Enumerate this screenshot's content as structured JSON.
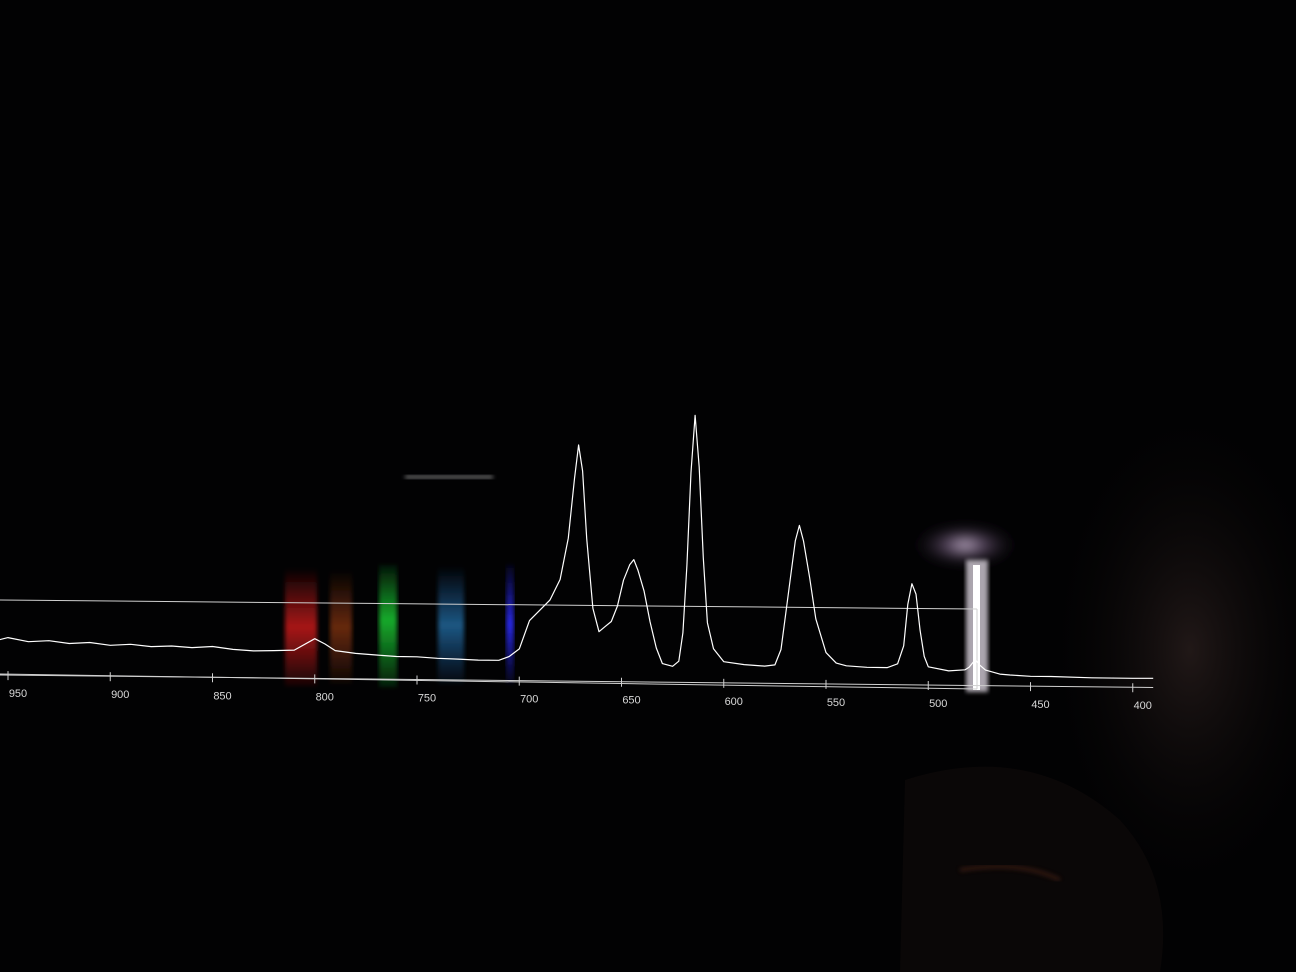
{
  "chart_data": {
    "type": "line",
    "title": "",
    "xlabel": "",
    "ylabel": "",
    "x_ticks": [
      950,
      900,
      850,
      800,
      750,
      700,
      650,
      600,
      550,
      500,
      450,
      400
    ],
    "xlim": [
      955,
      390
    ],
    "ylim": [
      0,
      1
    ],
    "x_axis_reversed": true,
    "grid": false,
    "legend": "none",
    "series": [
      {
        "points": [
          [
            955,
            0.1
          ],
          [
            950,
            0.11
          ],
          [
            940,
            0.095
          ],
          [
            930,
            0.1
          ],
          [
            920,
            0.09
          ],
          [
            910,
            0.095
          ],
          [
            900,
            0.085
          ],
          [
            890,
            0.09
          ],
          [
            880,
            0.082
          ],
          [
            870,
            0.085
          ],
          [
            860,
            0.08
          ],
          [
            850,
            0.085
          ],
          [
            840,
            0.075
          ],
          [
            830,
            0.07
          ],
          [
            820,
            0.072
          ],
          [
            810,
            0.075
          ],
          [
            800,
            0.12
          ],
          [
            795,
            0.1
          ],
          [
            790,
            0.075
          ],
          [
            780,
            0.065
          ],
          [
            770,
            0.06
          ],
          [
            760,
            0.055
          ],
          [
            750,
            0.055
          ],
          [
            740,
            0.05
          ],
          [
            730,
            0.048
          ],
          [
            720,
            0.045
          ],
          [
            710,
            0.045
          ],
          [
            705,
            0.06
          ],
          [
            700,
            0.09
          ],
          [
            695,
            0.2
          ],
          [
            690,
            0.24
          ],
          [
            685,
            0.28
          ],
          [
            680,
            0.36
          ],
          [
            676,
            0.52
          ],
          [
            673,
            0.75
          ],
          [
            671,
            0.88
          ],
          [
            669,
            0.78
          ],
          [
            667,
            0.52
          ],
          [
            664,
            0.25
          ],
          [
            661,
            0.16
          ],
          [
            658,
            0.18
          ],
          [
            655,
            0.2
          ],
          [
            652,
            0.26
          ],
          [
            649,
            0.36
          ],
          [
            646,
            0.42
          ],
          [
            644,
            0.44
          ],
          [
            642,
            0.4
          ],
          [
            639,
            0.32
          ],
          [
            636,
            0.2
          ],
          [
            633,
            0.1
          ],
          [
            630,
            0.04
          ],
          [
            625,
            0.03
          ],
          [
            622,
            0.05
          ],
          [
            620,
            0.16
          ],
          [
            618,
            0.42
          ],
          [
            616,
            0.78
          ],
          [
            614,
            1.0
          ],
          [
            612,
            0.8
          ],
          [
            610,
            0.45
          ],
          [
            608,
            0.2
          ],
          [
            605,
            0.1
          ],
          [
            600,
            0.05
          ],
          [
            590,
            0.04
          ],
          [
            580,
            0.035
          ],
          [
            575,
            0.04
          ],
          [
            572,
            0.1
          ],
          [
            570,
            0.22
          ],
          [
            567,
            0.4
          ],
          [
            565,
            0.52
          ],
          [
            563,
            0.58
          ],
          [
            561,
            0.52
          ],
          [
            558,
            0.38
          ],
          [
            555,
            0.22
          ],
          [
            550,
            0.09
          ],
          [
            545,
            0.05
          ],
          [
            540,
            0.04
          ],
          [
            530,
            0.035
          ],
          [
            520,
            0.035
          ],
          [
            515,
            0.05
          ],
          [
            512,
            0.12
          ],
          [
            510,
            0.28
          ],
          [
            508,
            0.36
          ],
          [
            506,
            0.32
          ],
          [
            504,
            0.18
          ],
          [
            502,
            0.08
          ],
          [
            500,
            0.04
          ],
          [
            490,
            0.025
          ],
          [
            482,
            0.03
          ],
          [
            480,
            0.04
          ],
          [
            477,
            0.07
          ],
          [
            475,
            0.05
          ],
          [
            472,
            0.03
          ],
          [
            465,
            0.015
          ],
          [
            460,
            0.012
          ],
          [
            450,
            0.008
          ],
          [
            440,
            0.008
          ],
          [
            420,
            0.005
          ],
          [
            400,
            0.005
          ],
          [
            390,
            0.006
          ]
        ]
      }
    ]
  },
  "overlay_colors": {
    "axis": "#d0d0d0",
    "curve": "#ffffff",
    "red_band": "#c41a1a",
    "orange_band": "#b8481a",
    "green_band": "#17b22d",
    "blue_band": "#2572c4",
    "violet_band": "#2020e0"
  }
}
